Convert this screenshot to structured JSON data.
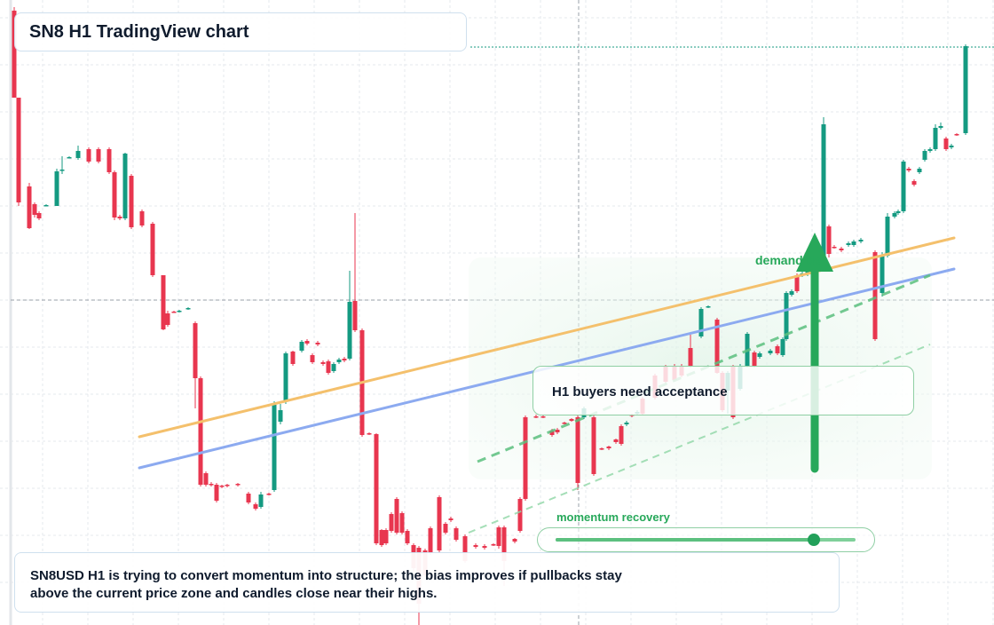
{
  "header": {
    "title": "SN8 H1 TradingView chart"
  },
  "chart_data": {
    "type": "candlestick",
    "colors": {
      "up": "#149a81",
      "down": "#e8364f",
      "wick_up": "#149a81",
      "wick_down": "#e8364f",
      "trend_orange": "#f4c06c",
      "trend_blue": "#8caaf0",
      "zone_green": "#27a85a"
    },
    "grid": true,
    "crosshair": true
  },
  "annotations": {
    "demand_label": "demand  de",
    "callout": "H1 buyers need acceptance",
    "momentum_label": "momentum recovery",
    "momentum_level": 0.86
  },
  "summary": {
    "text": "SN8USD H1 is trying to convert momentum into structure; the bias improves if pullbacks stay above the current price zone and candles close near their highs."
  }
}
